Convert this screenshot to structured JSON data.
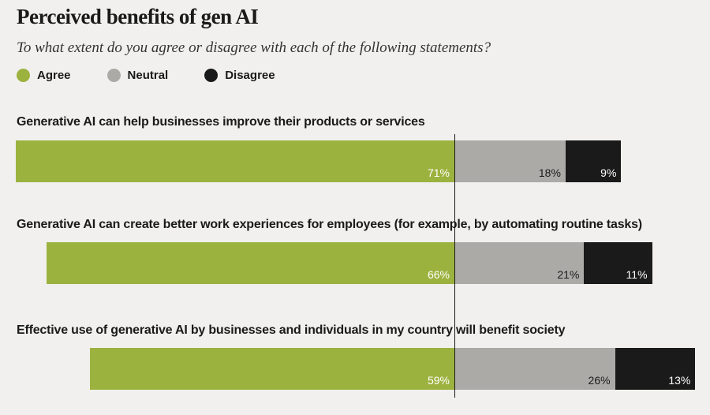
{
  "title": "Perceived benefits of gen AI",
  "subtitle": "To what extent do you agree or disagree with each of the following statements?",
  "legend": [
    {
      "label": "Agree",
      "color": "#9cb23f"
    },
    {
      "label": "Neutral",
      "color": "#acaaa7"
    },
    {
      "label": "Disagree",
      "color": "#1a1a1a"
    }
  ],
  "chart_data": {
    "type": "bar",
    "orientation": "horizontal-diverging-stacked",
    "title": "Perceived benefits of gen AI",
    "subtitle": "To what extent do you agree or disagree with each of the following statements?",
    "series": [
      {
        "name": "Agree",
        "values": [
          71,
          66,
          59
        ],
        "labels": [
          "71%",
          "66%",
          "59%"
        ]
      },
      {
        "name": "Neutral",
        "values": [
          18,
          21,
          26
        ],
        "labels": [
          "18%",
          "21%",
          "26%"
        ]
      },
      {
        "name": "Disagree",
        "values": [
          9,
          11,
          13
        ],
        "labels": [
          "9%",
          "11%",
          "13%"
        ]
      }
    ],
    "categories": [
      "Generative AI can help businesses improve their products or services",
      "Generative AI can create better work experiences for employees (for example, by automating routine tasks)",
      "Effective use of generative AI by businesses and individuals in my country will benefit society"
    ],
    "unit": "%"
  }
}
